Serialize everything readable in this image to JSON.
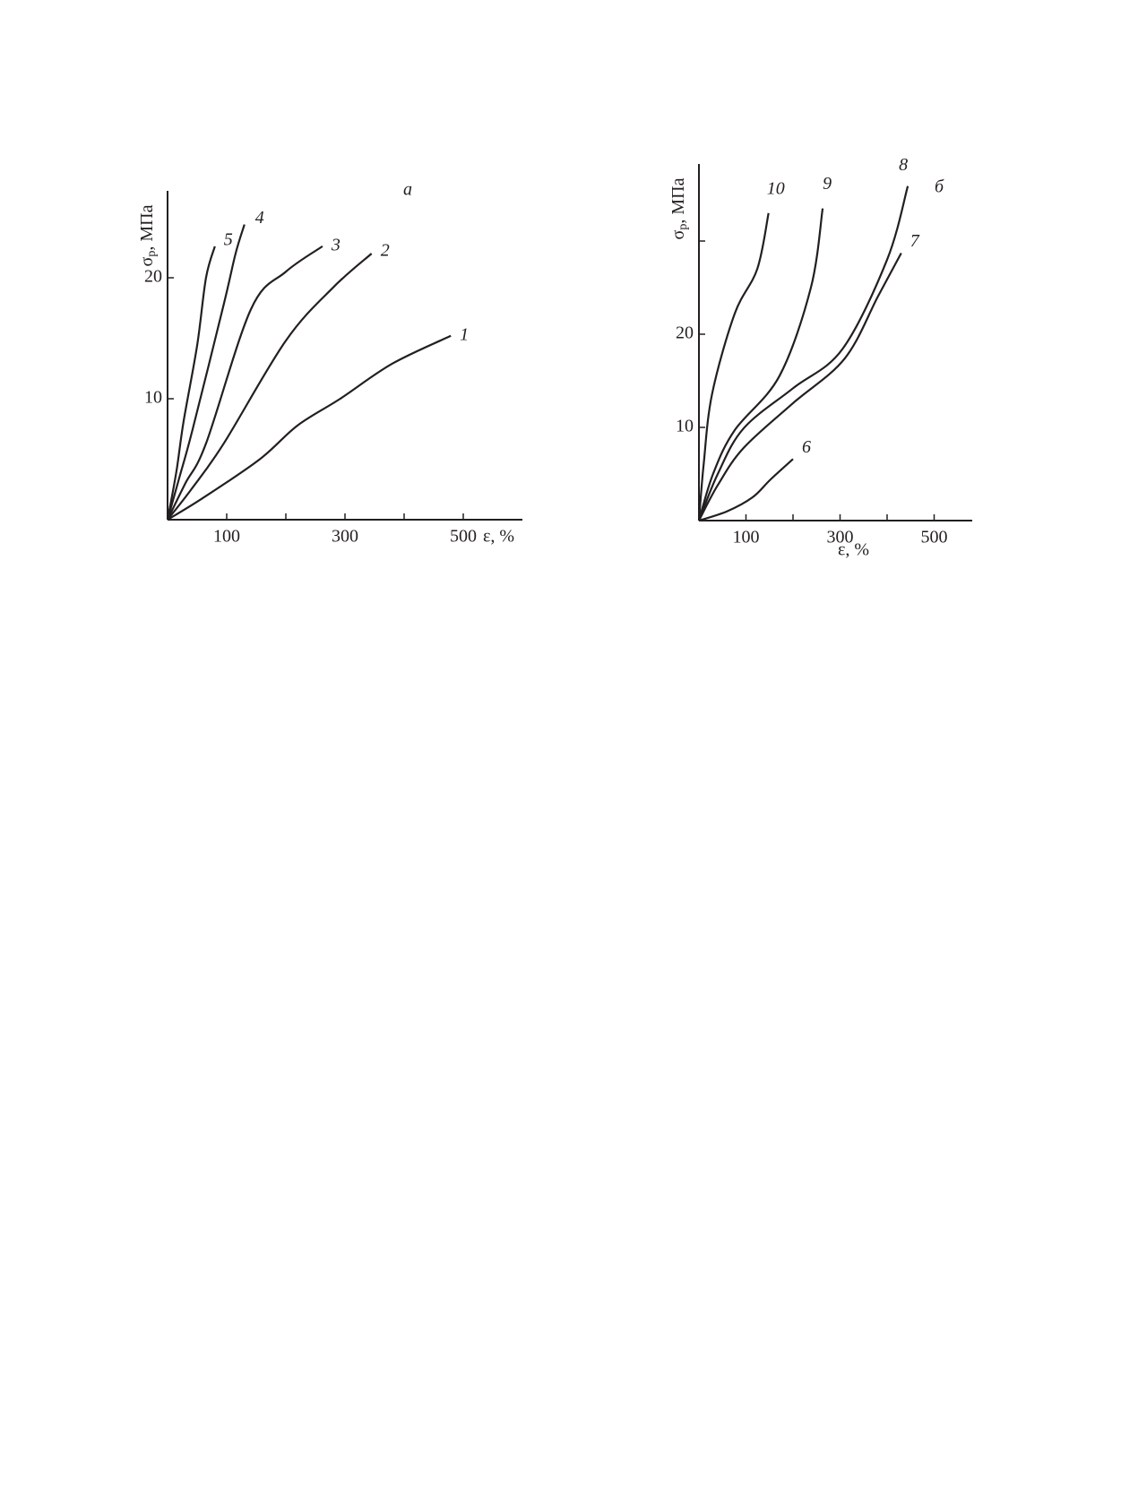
{
  "chart_data": [
    {
      "type": "line",
      "panel_label": "а",
      "xlabel": "ε, %",
      "ylabel": "σ",
      "ylabel_sub": "p",
      "ylabel_unit": ", МПа",
      "xlim": [
        0,
        600
      ],
      "ylim": [
        0,
        27
      ],
      "xticks": [
        100,
        300,
        500
      ],
      "xminor": [
        200,
        400
      ],
      "yticks": [
        10,
        20
      ],
      "color": "#231f20",
      "series": [
        {
          "name": "1",
          "x": [
            0,
            60,
            156,
            220,
            292,
            380,
            479
          ],
          "values": [
            0,
            1.8,
            5,
            7.8,
            10,
            12.9,
            15.2
          ]
        },
        {
          "name": "2",
          "x": [
            0,
            40,
            95,
            200,
            280,
            345
          ],
          "values": [
            0,
            2.5,
            6.3,
            14.8,
            19.2,
            22
          ]
        },
        {
          "name": "3",
          "x": [
            0,
            30,
            65,
            141,
            200,
            262
          ],
          "values": [
            0,
            3,
            6.3,
            17.4,
            20.5,
            22.6
          ]
        },
        {
          "name": "4",
          "x": [
            0,
            20,
            42,
            95,
            115,
            130
          ],
          "values": [
            0,
            3.5,
            7.4,
            17.8,
            22,
            24.4
          ]
        },
        {
          "name": "5",
          "x": [
            0,
            15,
            27,
            50,
            65,
            80
          ],
          "values": [
            0,
            4,
            8.1,
            14.4,
            20,
            22.6
          ]
        }
      ]
    },
    {
      "type": "line",
      "panel_label": "б",
      "xlabel": "ε, %",
      "ylabel": "σ",
      "ylabel_sub": "p",
      "ylabel_unit": ", МПа",
      "xlim": [
        0,
        580
      ],
      "ylim": [
        0,
        38
      ],
      "xticks": [
        100,
        300,
        500
      ],
      "xminor": [
        200,
        400
      ],
      "yticks": [
        10,
        20
      ],
      "yminor": [
        30
      ],
      "color": "#231f20",
      "series": [
        {
          "name": "6",
          "x": [
            0,
            60,
            114,
            152,
            200
          ],
          "values": [
            0,
            1,
            2.5,
            4.4,
            6.6
          ]
        },
        {
          "name": "7",
          "x": [
            0,
            40,
            95,
            200,
            310,
            381,
            430
          ],
          "values": [
            0,
            3.8,
            7.8,
            12.6,
            17.4,
            24.1,
            28.7
          ]
        },
        {
          "name": "8",
          "x": [
            0,
            40,
            95,
            200,
            305,
            400,
            444
          ],
          "values": [
            0,
            5,
            9.9,
            14.2,
            18.4,
            28,
            35.9
          ]
        },
        {
          "name": "9",
          "x": [
            0,
            30,
            76,
            171,
            238,
            263
          ],
          "values": [
            0,
            5,
            9.7,
            15.5,
            25,
            33.5
          ]
        },
        {
          "name": "10",
          "x": [
            0,
            10,
            28,
            76,
            124,
            148
          ],
          "values": [
            0,
            6,
            13.6,
            22.2,
            27,
            33
          ]
        }
      ]
    }
  ]
}
